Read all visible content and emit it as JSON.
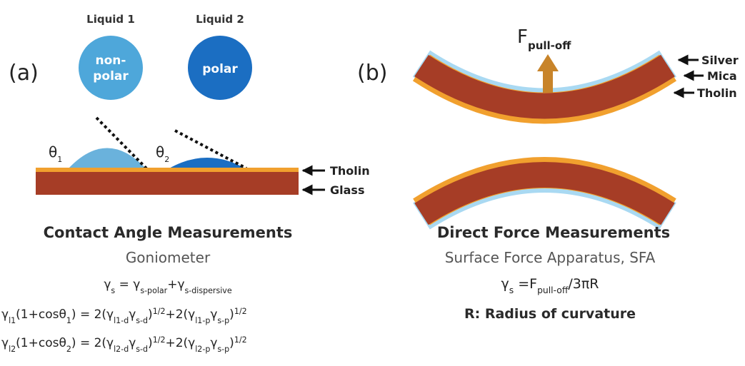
{
  "panel_a": {
    "label": "(a)",
    "liquids": [
      {
        "name": "Liquid 1",
        "label_lines": [
          "non-",
          "polar"
        ]
      },
      {
        "name": "Liquid 2",
        "label_lines": [
          "polar"
        ]
      }
    ],
    "angles": [
      {
        "symbol": "θ",
        "subscript": "1"
      },
      {
        "symbol": "θ",
        "subscript": "2"
      }
    ],
    "layers": [
      "Tholin",
      "Glass"
    ],
    "title": "Contact Angle Measurements",
    "instrument": "Goniometer",
    "equations": [
      [
        "γ",
        "s",
        " = γ",
        "s-polar",
        "+γ",
        "s-dispersive"
      ],
      [
        "γ",
        "l1",
        "(1+cosθ",
        "1",
        ") = 2(γ",
        "l1-d",
        "γ",
        "s-d",
        ")",
        "1/2",
        "+2(γ",
        "l1-p",
        "γ",
        "s-p",
        ")",
        "1/2"
      ],
      [
        "γ",
        "l2",
        "(1+cosθ",
        "2",
        ") = 2(γ",
        "l2-d",
        "γ",
        "s-d",
        ")",
        "1/2",
        "+2(γ",
        "l2-p",
        "γ",
        "s-p",
        ")",
        "1/2"
      ]
    ]
  },
  "panel_b": {
    "label": "(b)",
    "force": {
      "symbol": "F",
      "subscript": "pull-off"
    },
    "layers": [
      "Silver",
      "Mica",
      "Tholin"
    ],
    "title": "Direct Force Measurements",
    "instrument": "Surface Force Apparatus, SFA",
    "equation": [
      "γ",
      "s",
      " =F",
      "pull-off",
      "/3πR"
    ],
    "note": "R: Radius of curvature"
  }
}
